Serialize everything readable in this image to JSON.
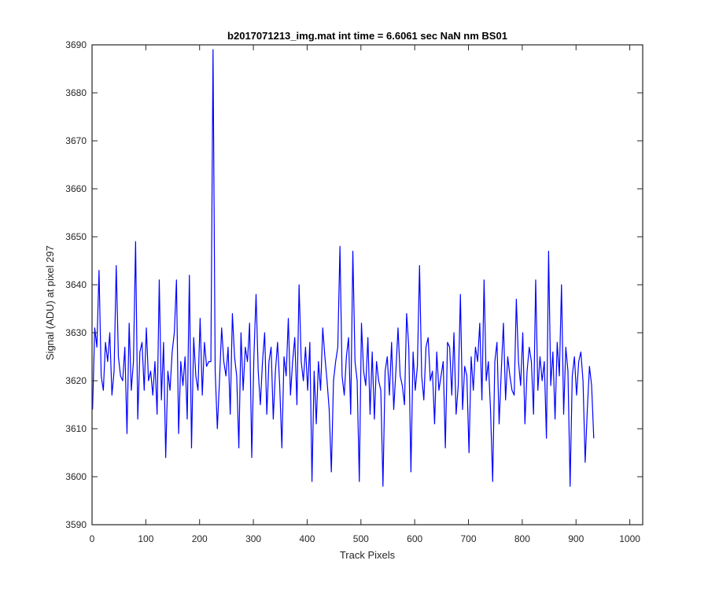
{
  "chart_data": {
    "type": "line",
    "title": "b2017071213_img.mat int time = 6.6061 sec  NaN nm BS01",
    "xlabel": "Track Pixels",
    "ylabel": "Signal (ADU) at pixel 297",
    "xlim": [
      0,
      1024
    ],
    "ylim": [
      3590,
      3690
    ],
    "xticks": [
      0,
      100,
      200,
      300,
      400,
      500,
      600,
      700,
      800,
      900,
      1000
    ],
    "yticks": [
      3590,
      3600,
      3610,
      3620,
      3630,
      3640,
      3650,
      3660,
      3670,
      3680,
      3690
    ],
    "grid": false,
    "legend": "none",
    "series": [
      {
        "color": "#0000ff",
        "x_start": 1,
        "x_step": 4,
        "values": [
          3614,
          3631,
          3627,
          3643,
          3621,
          3618,
          3628,
          3624,
          3630,
          3617,
          3622,
          3644,
          3625,
          3621,
          3620,
          3627,
          3609,
          3632,
          3618,
          3624,
          3649,
          3612,
          3626,
          3628,
          3618,
          3631,
          3620,
          3622,
          3617,
          3624,
          3613,
          3641,
          3616,
          3628,
          3604,
          3622,
          3618,
          3626,
          3630,
          3641,
          3609,
          3624,
          3619,
          3625,
          3612,
          3642,
          3606,
          3629,
          3621,
          3618,
          3633,
          3617,
          3628,
          3623,
          3624,
          3624,
          3689,
          3622,
          3610,
          3620,
          3631,
          3624,
          3621,
          3627,
          3613,
          3634,
          3625,
          3621,
          3606,
          3630,
          3618,
          3627,
          3624,
          3632,
          3604,
          3625,
          3638,
          3622,
          3615,
          3624,
          3630,
          3613,
          3624,
          3627,
          3612,
          3622,
          3628,
          3619,
          3606,
          3625,
          3621,
          3633,
          3617,
          3624,
          3629,
          3615,
          3640,
          3624,
          3620,
          3627,
          3618,
          3628,
          3599,
          3622,
          3611,
          3624,
          3618,
          3631,
          3625,
          3620,
          3614,
          3601,
          3620,
          3624,
          3627,
          3648,
          3621,
          3617,
          3625,
          3629,
          3613,
          3647,
          3624,
          3620,
          3599,
          3632,
          3622,
          3619,
          3629,
          3613,
          3626,
          3612,
          3624,
          3620,
          3618,
          3598,
          3622,
          3625,
          3617,
          3628,
          3614,
          3622,
          3631,
          3621,
          3619,
          3615,
          3634,
          3627,
          3601,
          3626,
          3618,
          3623,
          3644,
          3621,
          3616,
          3627,
          3629,
          3620,
          3622,
          3611,
          3626,
          3618,
          3621,
          3624,
          3606,
          3628,
          3627,
          3617,
          3630,
          3613,
          3619,
          3638,
          3614,
          3623,
          3621,
          3605,
          3625,
          3618,
          3627,
          3624,
          3632,
          3616,
          3641,
          3620,
          3624,
          3614,
          3599,
          3624,
          3628,
          3611,
          3622,
          3632,
          3616,
          3625,
          3621,
          3618,
          3617,
          3637,
          3624,
          3619,
          3630,
          3611,
          3622,
          3627,
          3624,
          3613,
          3641,
          3618,
          3625,
          3620,
          3624,
          3608,
          3647,
          3619,
          3626,
          3612,
          3628,
          3621,
          3640,
          3613,
          3627,
          3622,
          3598,
          3621,
          3625,
          3617,
          3624,
          3626,
          3620,
          3603,
          3614,
          3623,
          3619,
          3608
        ]
      }
    ]
  }
}
